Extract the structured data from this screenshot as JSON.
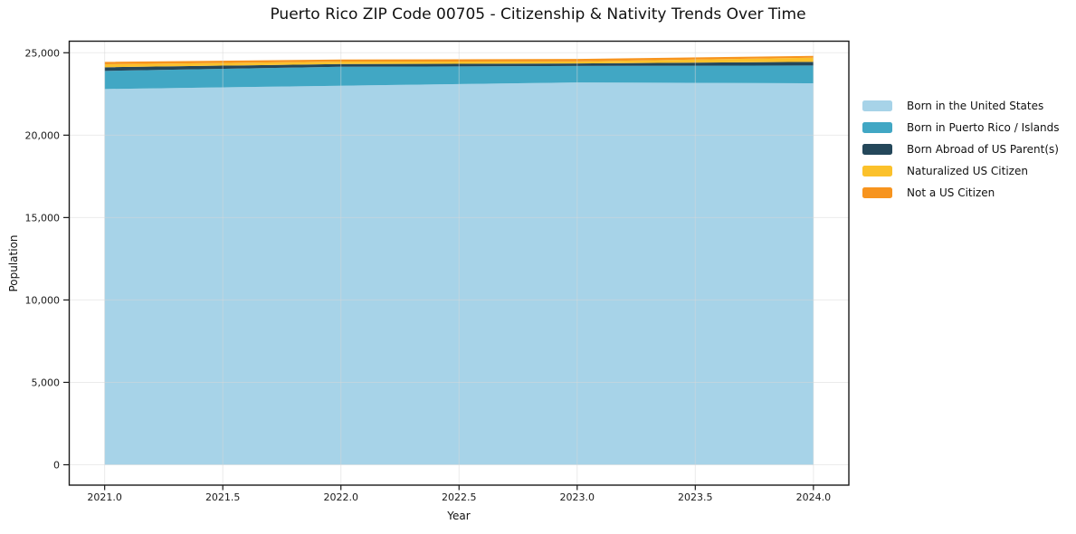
{
  "chart_data": {
    "type": "area",
    "stacked": true,
    "title": "Puerto Rico ZIP Code 00705 - Citizenship & Nativity Trends Over Time",
    "xlabel": "Year",
    "ylabel": "Population",
    "x": [
      2021,
      2022,
      2023,
      2024
    ],
    "series": [
      {
        "name": "Born in the United States",
        "color": "#a7d3e8",
        "values": [
          22800,
          23000,
          23200,
          23150
        ]
      },
      {
        "name": "Born in Puerto Rico / Islands",
        "color": "#41a7c4",
        "values": [
          1100,
          1150,
          1000,
          1080
        ]
      },
      {
        "name": "Born Abroad of US Parent(s)",
        "color": "#24475a",
        "values": [
          220,
          165,
          150,
          220
        ]
      },
      {
        "name": "Naturalized US Citizen",
        "color": "#fbc12b",
        "values": [
          180,
          150,
          125,
          250
        ]
      },
      {
        "name": "Not a US Citizen",
        "color": "#f7941e",
        "values": [
          150,
          125,
          150,
          110
        ]
      }
    ],
    "x_ticks": [
      2021.0,
      2021.5,
      2022.0,
      2022.5,
      2023.0,
      2023.5,
      2024.0
    ],
    "x_tick_labels": [
      "2021.0",
      "2021.5",
      "2022.0",
      "2022.5",
      "2023.0",
      "2023.5",
      "2024.0"
    ],
    "y_ticks": [
      0,
      5000,
      10000,
      15000,
      20000,
      25000
    ],
    "y_tick_labels": [
      "0",
      "5,000",
      "10,000",
      "15,000",
      "20,000",
      "25,000"
    ],
    "xlim": [
      2020.85,
      2024.15
    ],
    "ylim": [
      -1236,
      25703
    ],
    "grid": true,
    "legend_position": "right-outside"
  },
  "colors": {
    "background": "#ffffff",
    "spine": "#1a1a1a",
    "grid": "#d8d8d8",
    "text": "#1a1a1a"
  }
}
